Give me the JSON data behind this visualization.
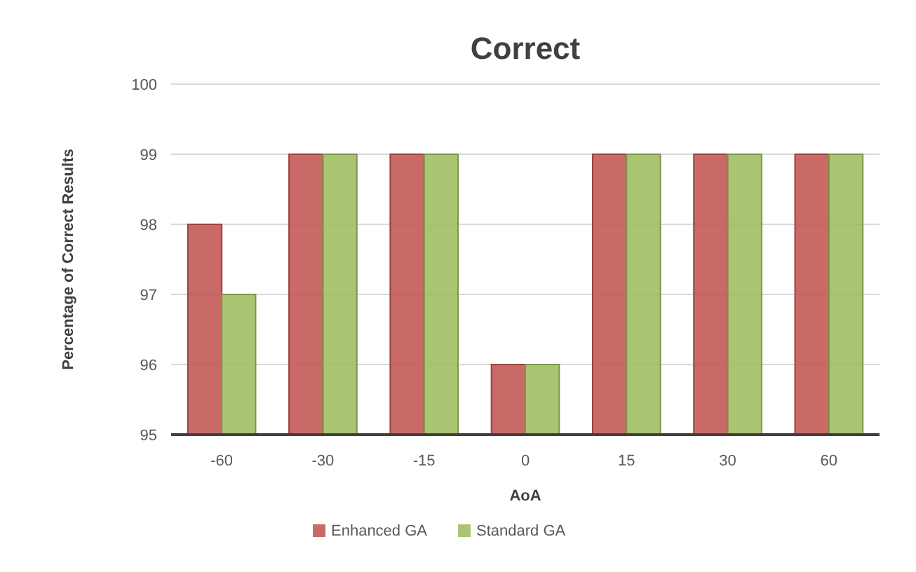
{
  "chart_data": {
    "type": "bar",
    "title": "Correct",
    "xlabel": "AoA",
    "ylabel": "Percentage of Correct Results",
    "categories": [
      "-60",
      "-30",
      "-15",
      "0",
      "15",
      "30",
      "60"
    ],
    "series": [
      {
        "name": "Enhanced GA",
        "color": "#c0504d",
        "values": [
          98,
          99,
          99,
          96,
          99,
          99,
          99
        ]
      },
      {
        "name": "Standard GA",
        "color": "#9bbb59",
        "values": [
          97,
          99,
          99,
          96,
          99,
          99,
          99
        ]
      }
    ],
    "ylim": [
      95,
      100
    ],
    "yticks": [
      95,
      96,
      97,
      98,
      99,
      100
    ],
    "grid": "y",
    "legend": "bottom"
  }
}
